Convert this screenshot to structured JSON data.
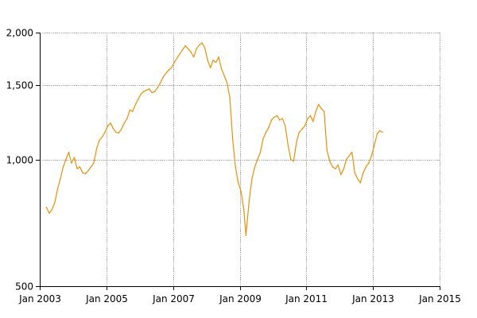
{
  "chart_data": {
    "type": "line",
    "title": "",
    "xlabel": "",
    "ylabel": "",
    "y_scale": "log",
    "ylim": [
      500,
      2000
    ],
    "xlim": [
      "2003-01-01",
      "2015-01-01"
    ],
    "grid": true,
    "legend": "none",
    "x_ticks": [
      {
        "value": "2003-01-01",
        "label": "Jan 2003"
      },
      {
        "value": "2005-01-01",
        "label": "Jan 2005"
      },
      {
        "value": "2007-01-01",
        "label": "Jan 2007"
      },
      {
        "value": "2009-01-01",
        "label": "Jan 2009"
      },
      {
        "value": "2011-01-01",
        "label": "Jan 2011"
      },
      {
        "value": "2013-01-01",
        "label": "Jan 2013"
      },
      {
        "value": "2015-01-01",
        "label": "Jan 2015"
      }
    ],
    "y_ticks": [
      {
        "value": 500,
        "label": "500"
      },
      {
        "value": 1000,
        "label": "1,000"
      },
      {
        "value": 1500,
        "label": "1,500"
      },
      {
        "value": 2000,
        "label": "2,000"
      }
    ],
    "series": [
      {
        "color": "#e8900a",
        "x": [
          "2003-03-15",
          "2003-04-15",
          "2003-05-15",
          "2003-06-15",
          "2003-07-15",
          "2003-08-15",
          "2003-09-15",
          "2003-10-15",
          "2003-11-15",
          "2003-12-15",
          "2004-01-15",
          "2004-02-15",
          "2004-03-15",
          "2004-04-15",
          "2004-05-15",
          "2004-06-15",
          "2004-07-15",
          "2004-08-15",
          "2004-09-15",
          "2004-10-15",
          "2004-11-15",
          "2004-12-15",
          "2005-01-15",
          "2005-02-15",
          "2005-03-15",
          "2005-04-15",
          "2005-05-15",
          "2005-06-15",
          "2005-07-15",
          "2005-08-15",
          "2005-09-15",
          "2005-10-15",
          "2005-11-15",
          "2005-12-15",
          "2006-01-15",
          "2006-02-15",
          "2006-03-15",
          "2006-04-15",
          "2006-05-15",
          "2006-06-15",
          "2006-07-15",
          "2006-08-15",
          "2006-09-15",
          "2006-10-15",
          "2006-11-15",
          "2006-12-15",
          "2007-01-15",
          "2007-02-15",
          "2007-03-15",
          "2007-04-15",
          "2007-05-15",
          "2007-06-15",
          "2007-07-15",
          "2007-08-15",
          "2007-09-15",
          "2007-10-15",
          "2007-11-15",
          "2007-12-15",
          "2008-01-15",
          "2008-02-15",
          "2008-03-15",
          "2008-04-15",
          "2008-05-15",
          "2008-06-15",
          "2008-07-15",
          "2008-08-15",
          "2008-09-15",
          "2008-10-15",
          "2008-11-15",
          "2008-12-15",
          "2009-01-15",
          "2009-02-15",
          "2009-03-10",
          "2009-04-15",
          "2009-05-15",
          "2009-06-15",
          "2009-07-15",
          "2009-08-15",
          "2009-09-15",
          "2009-10-15",
          "2009-11-15",
          "2009-12-15",
          "2010-01-15",
          "2010-02-15",
          "2010-03-15",
          "2010-04-15",
          "2010-05-15",
          "2010-06-15",
          "2010-07-15",
          "2010-08-15",
          "2010-09-15",
          "2010-10-15",
          "2010-11-15",
          "2010-12-15",
          "2011-01-15",
          "2011-02-15",
          "2011-03-15",
          "2011-04-15",
          "2011-05-15",
          "2011-06-15",
          "2011-07-15",
          "2011-08-15",
          "2011-09-15",
          "2011-10-15",
          "2011-11-15",
          "2011-12-15",
          "2012-01-15",
          "2012-02-15",
          "2012-03-15",
          "2012-04-15",
          "2012-05-15",
          "2012-06-15",
          "2012-07-15",
          "2012-08-15",
          "2012-09-15",
          "2012-10-15",
          "2012-11-15",
          "2012-12-15",
          "2013-01-15",
          "2013-02-15",
          "2013-03-15",
          "2013-04-15"
        ],
        "values": [
          770,
          745,
          760,
          790,
          850,
          900,
          960,
          1000,
          1040,
          980,
          1010,
          950,
          960,
          930,
          925,
          940,
          960,
          980,
          1060,
          1110,
          1130,
          1160,
          1200,
          1220,
          1185,
          1160,
          1155,
          1180,
          1220,
          1250,
          1310,
          1300,
          1350,
          1390,
          1430,
          1450,
          1460,
          1470,
          1440,
          1450,
          1480,
          1520,
          1570,
          1600,
          1630,
          1650,
          1700,
          1740,
          1780,
          1820,
          1860,
          1830,
          1800,
          1750,
          1830,
          1870,
          1890,
          1840,
          1720,
          1650,
          1720,
          1700,
          1750,
          1640,
          1580,
          1520,
          1400,
          1120,
          960,
          880,
          840,
          760,
          660,
          800,
          900,
          960,
          1000,
          1040,
          1120,
          1160,
          1190,
          1240,
          1260,
          1270,
          1240,
          1250,
          1200,
          1080,
          1000,
          990,
          1100,
          1160,
          1180,
          1200,
          1250,
          1270,
          1230,
          1300,
          1350,
          1320,
          1300,
          1050,
          990,
          960,
          950,
          970,
          920,
          950,
          1000,
          1020,
          1040,
          930,
          900,
          880,
          930,
          960,
          980,
          1020,
          1080,
          1150,
          1170,
          1160
        ]
      }
    ]
  }
}
